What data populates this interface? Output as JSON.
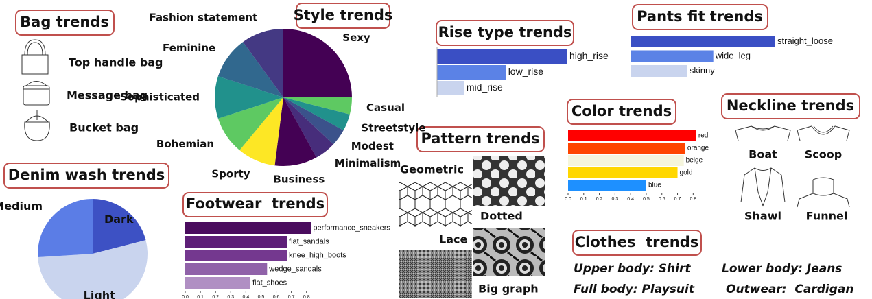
{
  "panels": {
    "bag": {
      "title": "Bag trends",
      "items": [
        "Top handle bag",
        "Message bag",
        "Bucket bag"
      ]
    },
    "pattern": {
      "title": "Pattern trends",
      "items": [
        "Geometric",
        "Dotted",
        "Lace",
        "Big graph"
      ]
    },
    "neckline": {
      "title": "Neckline trends",
      "items": [
        "Boat",
        "Scoop",
        "Shawl",
        "Funnel"
      ]
    },
    "clothes": {
      "title": "Clothes  trends",
      "items": [
        "Upper body: Shirt",
        "Lower body: Jeans",
        "Full body: Playsuit",
        "Outwear:  Cardigan"
      ]
    }
  },
  "chart_data": [
    {
      "type": "pie",
      "title": "Style trends",
      "categories": [
        "Sexy",
        "Casual",
        "Streetstyle",
        "Modest",
        "Minimalism",
        "Business",
        "Sporty",
        "Bohemian",
        "Sophisticated",
        "Feminine",
        "Fashion statement"
      ],
      "values": [
        25,
        4,
        4,
        4,
        5,
        10,
        9,
        9,
        10,
        10,
        10
      ],
      "colors": [
        "#440154",
        "#5ec962",
        "#21918c",
        "#3b528b",
        "#472d7b",
        "#440154",
        "#fde725",
        "#5ec962",
        "#21918c",
        "#31688e",
        "#443983"
      ]
    },
    {
      "type": "barh",
      "title": "Rise type trends",
      "categories": [
        "high_rise",
        "low_rise",
        "mid_rise"
      ],
      "values": [
        1,
        0.53,
        0.21
      ],
      "colors": [
        "#3a4fc4",
        "#5b82e6",
        "#c9d4ee"
      ]
    },
    {
      "type": "barh",
      "title": "Pants fit trends",
      "categories": [
        "straight_loose",
        "wide_leg",
        "skinny"
      ],
      "values": [
        1,
        0.57,
        0.39
      ],
      "colors": [
        "#3a4fc4",
        "#5b82e6",
        "#c9d4ee"
      ]
    },
    {
      "type": "barh",
      "title": "Color trends",
      "categories": [
        "red",
        "orange",
        "beige",
        "gold",
        "blue"
      ],
      "values": [
        0.82,
        0.75,
        0.74,
        0.7,
        0.5
      ],
      "colors": [
        "#ff0000",
        "#ff4500",
        "#f5f5dc",
        "#ffd700",
        "#1e90ff"
      ],
      "xlim": [
        0,
        0.86
      ],
      "xticks": [
        {
          "value": 0,
          "label": "0.0"
        },
        0.1,
        0.2,
        0.3,
        0.4,
        0.5,
        0.6,
        0.7,
        0.8
      ]
    },
    {
      "type": "pie",
      "title": "Denim wash trends",
      "categories": [
        "Dark",
        "Light",
        "Medium"
      ],
      "values": [
        21,
        53,
        26
      ],
      "colors": [
        "#3d51c4",
        "#c9d4ee",
        "#5b7de6"
      ]
    },
    {
      "type": "barh",
      "title": "Footwear  trends",
      "categories": [
        "performance_sneakers",
        "flat_sandals",
        "knee_high_boots",
        "wedge_sandals",
        "flat_shoes"
      ],
      "values": [
        0.83,
        0.67,
        0.67,
        0.54,
        0.43
      ],
      "colors": [
        "#4a0c5e",
        "#5e1f78",
        "#74388f",
        "#9062a9",
        "#b08fc3"
      ],
      "xlim": [
        0,
        0.86
      ],
      "xticks": [
        {
          "value": 0,
          "label": "0.0"
        },
        0.1,
        0.2,
        0.3,
        0.4,
        0.5,
        0.6,
        0.7,
        0.8
      ]
    }
  ]
}
